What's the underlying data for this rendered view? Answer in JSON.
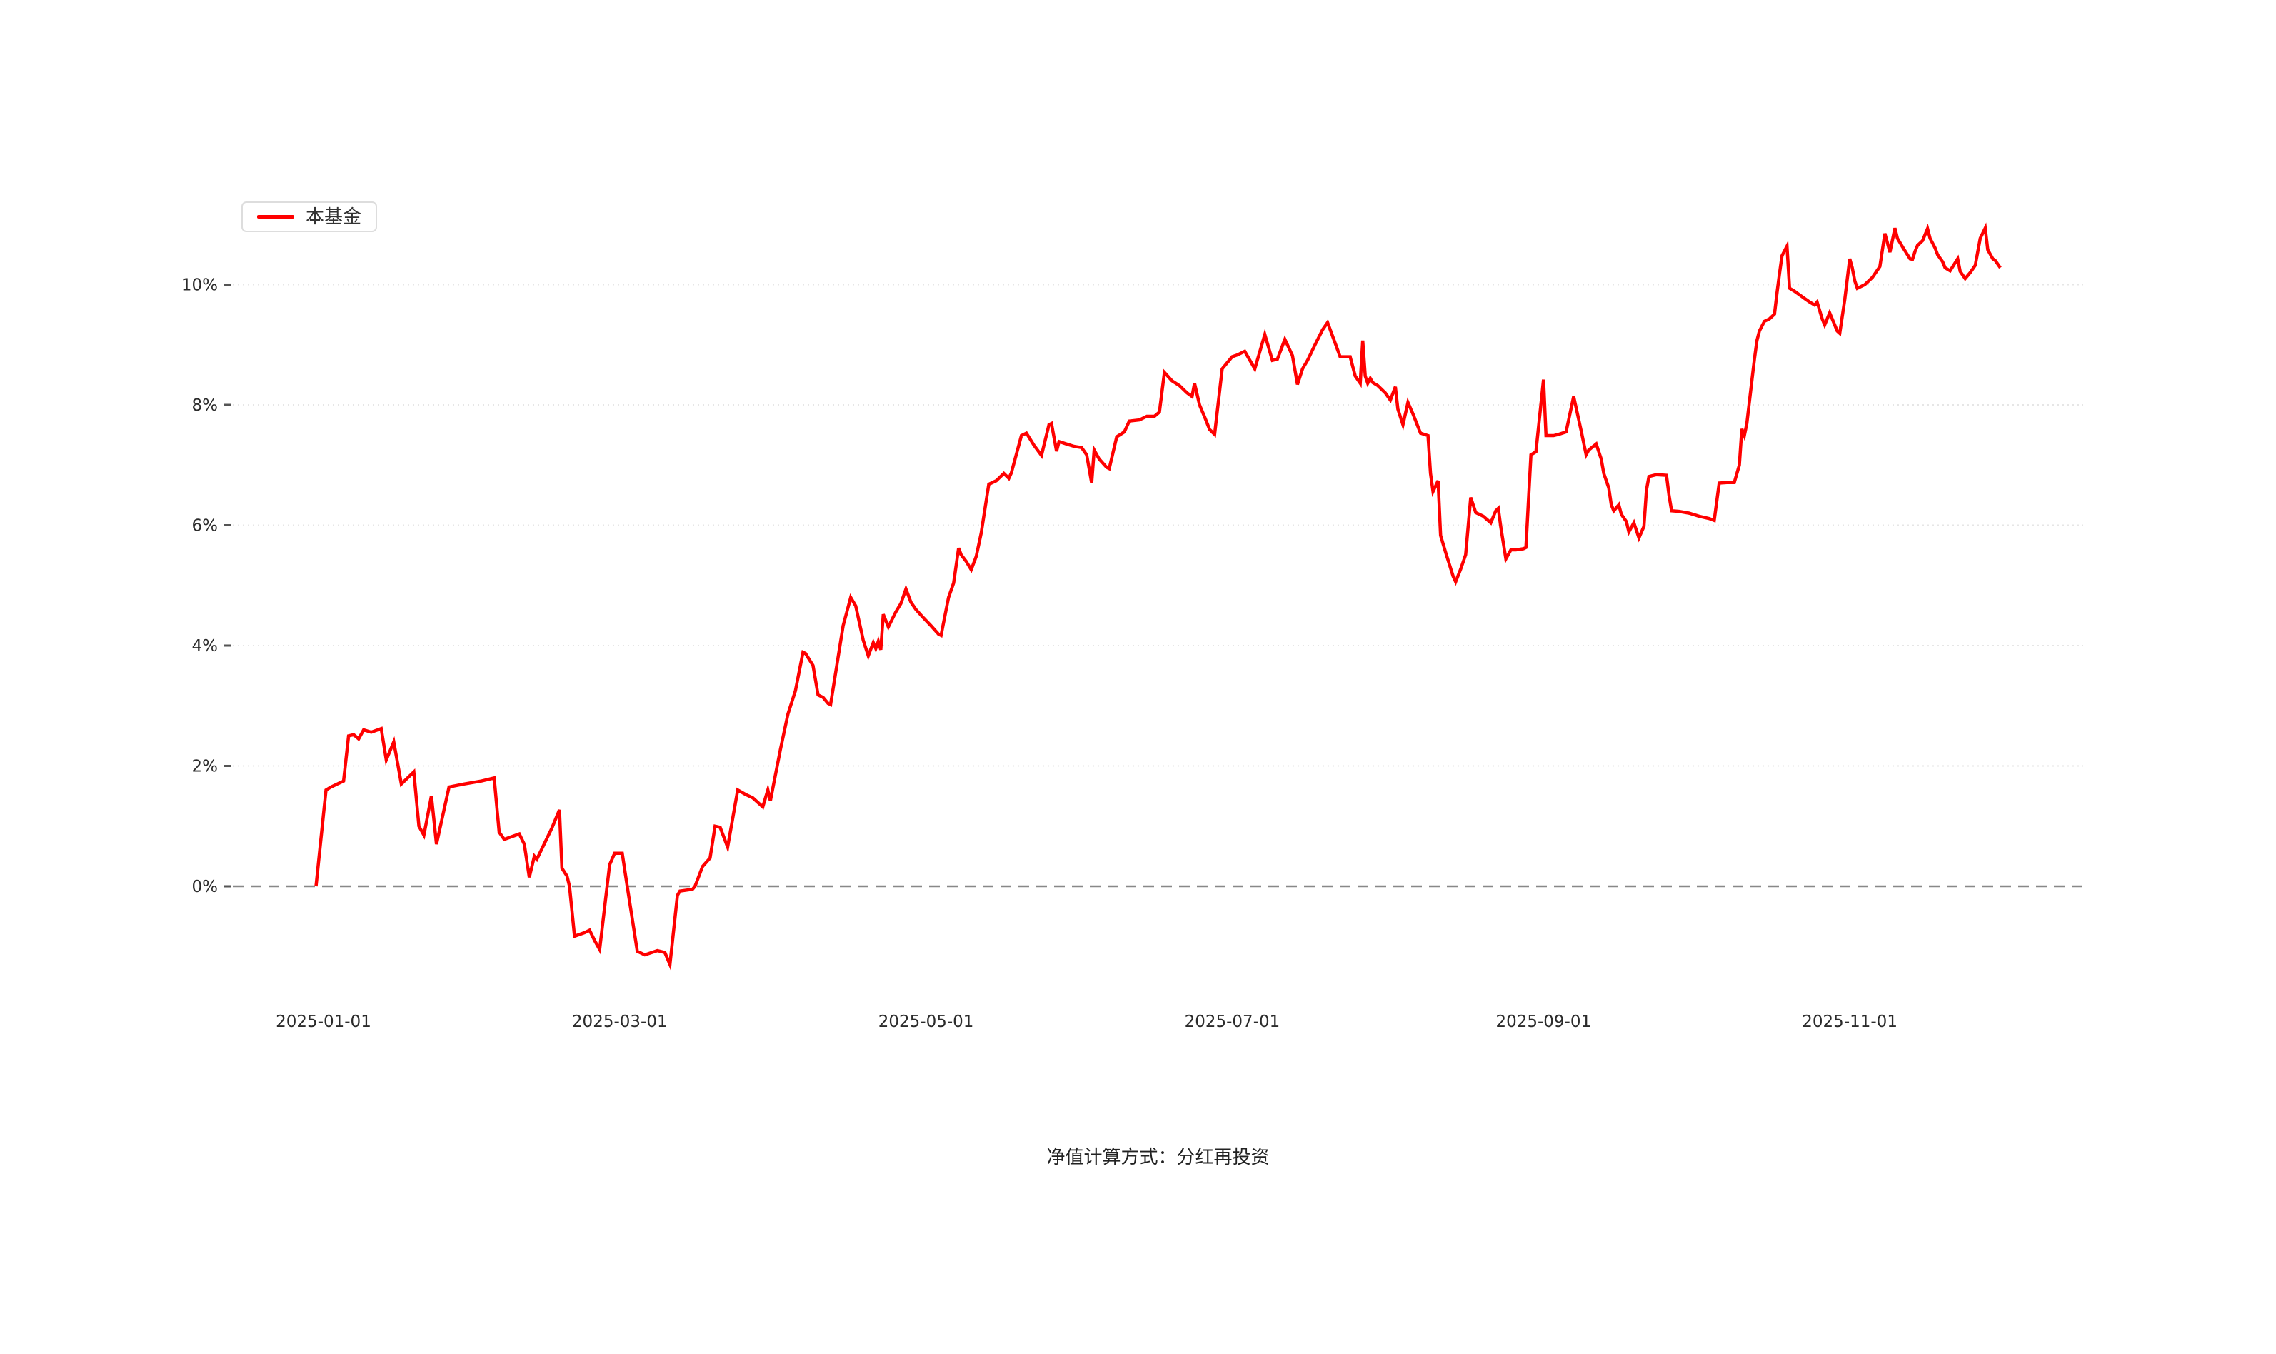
{
  "chart_data": {
    "type": "line",
    "legend": {
      "label": "本基金",
      "position": "top-left"
    },
    "footnote": "净值计算方式：分红再投资",
    "style": {
      "series_color": "#ff0000",
      "zero_line_color": "#888888",
      "grid_line_color": "#e6e6e6",
      "axis_text_color": "#2b2b2b",
      "tick_mark_color": "#555555",
      "background": "#ffffff"
    },
    "x_axis": {
      "unit": "days_from_2025-01-01",
      "range": [
        -18,
        350
      ],
      "ticks": [
        {
          "day": 0,
          "label": "2025-01-01"
        },
        {
          "day": 59,
          "label": "2025-03-01"
        },
        {
          "day": 120,
          "label": "2025-05-01"
        },
        {
          "day": 181,
          "label": "2025-07-01"
        },
        {
          "day": 243,
          "label": "2025-09-01"
        },
        {
          "day": 304,
          "label": "2025-11-01"
        }
      ]
    },
    "y_axis": {
      "unit": "%",
      "grid": "horizontal-dotted",
      "zero_line": "dashed",
      "ticks": [
        {
          "value": 0,
          "label": "0%"
        },
        {
          "value": 2,
          "label": "2%"
        },
        {
          "value": 4,
          "label": "4%"
        },
        {
          "value": 6,
          "label": "6%"
        },
        {
          "value": 8,
          "label": "8%"
        },
        {
          "value": 10,
          "label": "10%"
        }
      ]
    },
    "series": [
      {
        "name": "本基金",
        "color": "#ff0000",
        "points": [
          [
            -1.5,
            0.0
          ],
          [
            0.5,
            1.6
          ],
          [
            1.5,
            1.65
          ],
          [
            4,
            1.75
          ],
          [
            5,
            2.5
          ],
          [
            6,
            2.52
          ],
          [
            7,
            2.45
          ],
          [
            8,
            2.6
          ],
          [
            9.5,
            2.56
          ],
          [
            11.5,
            2.62
          ],
          [
            12.5,
            2.1
          ],
          [
            14,
            2.4
          ],
          [
            15.5,
            1.7
          ],
          [
            16.5,
            1.78
          ],
          [
            18,
            1.9
          ],
          [
            19,
            1.0
          ],
          [
            20,
            0.85
          ],
          [
            21.5,
            1.5
          ],
          [
            22.5,
            0.7
          ],
          [
            25,
            1.65
          ],
          [
            28,
            1.7
          ],
          [
            31.5,
            1.75
          ],
          [
            34,
            1.8
          ],
          [
            35,
            0.9
          ],
          [
            36,
            0.78
          ],
          [
            39,
            0.87
          ],
          [
            40,
            0.7
          ],
          [
            41,
            0.15
          ],
          [
            42,
            0.5
          ],
          [
            42.5,
            0.45
          ],
          [
            45.5,
            0.97
          ],
          [
            47,
            1.27
          ],
          [
            47.5,
            0.3
          ],
          [
            48.5,
            0.17
          ],
          [
            49,
            0.0
          ],
          [
            50,
            -0.83
          ],
          [
            52,
            -0.77
          ],
          [
            53,
            -0.73
          ],
          [
            54,
            -0.9
          ],
          [
            55,
            -1.05
          ],
          [
            57,
            0.36
          ],
          [
            58,
            0.55
          ],
          [
            59.5,
            0.55
          ],
          [
            60.5,
            0.0
          ],
          [
            62.5,
            -1.08
          ],
          [
            64,
            -1.14
          ],
          [
            66.5,
            -1.07
          ],
          [
            68,
            -1.1
          ],
          [
            69,
            -1.3
          ],
          [
            70.5,
            -0.15
          ],
          [
            71,
            -0.08
          ],
          [
            73.5,
            -0.05
          ],
          [
            74,
            0.0
          ],
          [
            75.5,
            0.33
          ],
          [
            77,
            0.47
          ],
          [
            78,
            1.0
          ],
          [
            79,
            0.98
          ],
          [
            80.5,
            0.65
          ],
          [
            82.5,
            1.6
          ],
          [
            84,
            1.53
          ],
          [
            85.5,
            1.47
          ],
          [
            87.5,
            1.32
          ],
          [
            88.5,
            1.6
          ],
          [
            89,
            1.42
          ],
          [
            91,
            2.27
          ],
          [
            92.5,
            2.86
          ],
          [
            94,
            3.25
          ],
          [
            95.5,
            3.89
          ],
          [
            96,
            3.87
          ],
          [
            97.5,
            3.67
          ],
          [
            98.5,
            3.18
          ],
          [
            99.5,
            3.14
          ],
          [
            100.5,
            3.04
          ],
          [
            101,
            3.02
          ],
          [
            103.5,
            4.33
          ],
          [
            105,
            4.8
          ],
          [
            106,
            4.66
          ],
          [
            107.5,
            4.09
          ],
          [
            108.5,
            3.83
          ],
          [
            109.5,
            4.05
          ],
          [
            110,
            3.95
          ],
          [
            110.5,
            4.07
          ],
          [
            111,
            3.93
          ],
          [
            111.5,
            4.52
          ],
          [
            112.5,
            4.31
          ],
          [
            114,
            4.56
          ],
          [
            115,
            4.7
          ],
          [
            116,
            4.94
          ],
          [
            117,
            4.72
          ],
          [
            118,
            4.6
          ],
          [
            119.5,
            4.46
          ],
          [
            121,
            4.33
          ],
          [
            122.5,
            4.19
          ],
          [
            123,
            4.17
          ],
          [
            124.5,
            4.8
          ],
          [
            125.5,
            5.04
          ],
          [
            126.5,
            5.62
          ],
          [
            127,
            5.51
          ],
          [
            128,
            5.4
          ],
          [
            129,
            5.26
          ],
          [
            130,
            5.48
          ],
          [
            131,
            5.87
          ],
          [
            132.5,
            6.68
          ],
          [
            134,
            6.74
          ],
          [
            135.5,
            6.86
          ],
          [
            136.5,
            6.78
          ],
          [
            137,
            6.87
          ],
          [
            139,
            7.49
          ],
          [
            140,
            7.53
          ],
          [
            141.5,
            7.33
          ],
          [
            143,
            7.16
          ],
          [
            144.5,
            7.67
          ],
          [
            145,
            7.69
          ],
          [
            146,
            7.23
          ],
          [
            146.5,
            7.39
          ],
          [
            148,
            7.35
          ],
          [
            149.5,
            7.31
          ],
          [
            151,
            7.29
          ],
          [
            152,
            7.17
          ],
          [
            153,
            6.7
          ],
          [
            153.5,
            7.25
          ],
          [
            154.5,
            7.1
          ],
          [
            156,
            6.96
          ],
          [
            156.5,
            6.94
          ],
          [
            158,
            7.47
          ],
          [
            159.5,
            7.55
          ],
          [
            160.5,
            7.73
          ],
          [
            162.5,
            7.75
          ],
          [
            164,
            7.81
          ],
          [
            165.5,
            7.81
          ],
          [
            166.5,
            7.88
          ],
          [
            167.5,
            8.54
          ],
          [
            169,
            8.4
          ],
          [
            170.5,
            8.32
          ],
          [
            172,
            8.2
          ],
          [
            173,
            8.14
          ],
          [
            173.5,
            8.36
          ],
          [
            174.5,
            8.0
          ],
          [
            175.5,
            7.8
          ],
          [
            176.5,
            7.59
          ],
          [
            177.5,
            7.51
          ],
          [
            179,
            8.6
          ],
          [
            181,
            8.8
          ],
          [
            182,
            8.83
          ],
          [
            183.5,
            8.89
          ],
          [
            185.5,
            8.6
          ],
          [
            187.5,
            9.17
          ],
          [
            189,
            8.74
          ],
          [
            190,
            8.76
          ],
          [
            191.5,
            9.09
          ],
          [
            193,
            8.82
          ],
          [
            194,
            8.34
          ],
          [
            195,
            8.6
          ],
          [
            196,
            8.74
          ],
          [
            197.5,
            9.0
          ],
          [
            199,
            9.25
          ],
          [
            200,
            9.37
          ],
          [
            201.5,
            9.03
          ],
          [
            202.5,
            8.8
          ],
          [
            204.5,
            8.8
          ],
          [
            205.5,
            8.48
          ],
          [
            206.5,
            8.36
          ],
          [
            207,
            9.07
          ],
          [
            207.5,
            8.48
          ],
          [
            208,
            8.36
          ],
          [
            208.5,
            8.44
          ],
          [
            209,
            8.37
          ],
          [
            210,
            8.32
          ],
          [
            211.5,
            8.2
          ],
          [
            212.5,
            8.08
          ],
          [
            213.5,
            8.3
          ],
          [
            214,
            7.93
          ],
          [
            215,
            7.67
          ],
          [
            216,
            8.04
          ],
          [
            217,
            7.85
          ],
          [
            218.5,
            7.53
          ],
          [
            220,
            7.49
          ],
          [
            220.5,
            6.86
          ],
          [
            221,
            6.56
          ],
          [
            222,
            6.74
          ],
          [
            222.5,
            5.83
          ],
          [
            223.5,
            5.55
          ],
          [
            225,
            5.15
          ],
          [
            225.5,
            5.06
          ],
          [
            226.5,
            5.27
          ],
          [
            227.5,
            5.51
          ],
          [
            228.5,
            6.46
          ],
          [
            229.5,
            6.21
          ],
          [
            231,
            6.15
          ],
          [
            232.5,
            6.04
          ],
          [
            233.5,
            6.24
          ],
          [
            234,
            6.28
          ],
          [
            234.5,
            5.97
          ],
          [
            235.5,
            5.44
          ],
          [
            236.5,
            5.59
          ],
          [
            237.5,
            5.59
          ],
          [
            239,
            5.61
          ],
          [
            239.5,
            5.63
          ],
          [
            240.5,
            7.17
          ],
          [
            241.5,
            7.22
          ],
          [
            243,
            8.42
          ],
          [
            243.5,
            7.49
          ],
          [
            245,
            7.49
          ],
          [
            246,
            7.51
          ],
          [
            247.5,
            7.55
          ],
          [
            249,
            8.14
          ],
          [
            250.5,
            7.57
          ],
          [
            251.5,
            7.17
          ],
          [
            252,
            7.25
          ],
          [
            253.5,
            7.35
          ],
          [
            254.5,
            7.1
          ],
          [
            255,
            6.86
          ],
          [
            256,
            6.62
          ],
          [
            256.5,
            6.34
          ],
          [
            257,
            6.24
          ],
          [
            258,
            6.34
          ],
          [
            258.5,
            6.18
          ],
          [
            259.5,
            6.06
          ],
          [
            260,
            5.89
          ],
          [
            261,
            6.04
          ],
          [
            262,
            5.79
          ],
          [
            263,
            5.98
          ],
          [
            263.5,
            6.58
          ],
          [
            264,
            6.81
          ],
          [
            265.5,
            6.84
          ],
          [
            267.5,
            6.83
          ],
          [
            268,
            6.5
          ],
          [
            268.5,
            6.24
          ],
          [
            270,
            6.23
          ],
          [
            272,
            6.2
          ],
          [
            274,
            6.15
          ],
          [
            276,
            6.11
          ],
          [
            277,
            6.08
          ],
          [
            278,
            6.7
          ],
          [
            279.5,
            6.71
          ],
          [
            281,
            6.71
          ],
          [
            282,
            7.0
          ],
          [
            282.5,
            7.6
          ],
          [
            283,
            7.49
          ],
          [
            283.5,
            7.69
          ],
          [
            284.5,
            8.4
          ],
          [
            285,
            8.76
          ],
          [
            285.5,
            9.07
          ],
          [
            286,
            9.23
          ],
          [
            287,
            9.39
          ],
          [
            288,
            9.43
          ],
          [
            289,
            9.51
          ],
          [
            289.5,
            9.86
          ],
          [
            290,
            10.18
          ],
          [
            290.5,
            10.48
          ],
          [
            291.5,
            10.64
          ],
          [
            292,
            9.94
          ],
          [
            293,
            9.89
          ],
          [
            293.5,
            9.86
          ],
          [
            294.5,
            9.8
          ],
          [
            295,
            9.77
          ],
          [
            296,
            9.71
          ],
          [
            297,
            9.66
          ],
          [
            297.5,
            9.71
          ],
          [
            298.5,
            9.43
          ],
          [
            299,
            9.33
          ],
          [
            300,
            9.53
          ],
          [
            301,
            9.33
          ],
          [
            301.5,
            9.23
          ],
          [
            302,
            9.19
          ],
          [
            302.5,
            9.47
          ],
          [
            303,
            9.75
          ],
          [
            304,
            10.43
          ],
          [
            304.5,
            10.28
          ],
          [
            305,
            10.06
          ],
          [
            305.5,
            9.94
          ],
          [
            307,
            10.0
          ],
          [
            308.5,
            10.12
          ],
          [
            310,
            10.3
          ],
          [
            311,
            10.85
          ],
          [
            312,
            10.54
          ],
          [
            313,
            10.94
          ],
          [
            313.5,
            10.77
          ],
          [
            314.5,
            10.63
          ],
          [
            316,
            10.43
          ],
          [
            316.5,
            10.42
          ],
          [
            317,
            10.55
          ],
          [
            317.5,
            10.65
          ],
          [
            318.5,
            10.73
          ],
          [
            319.5,
            10.93
          ],
          [
            320,
            10.77
          ],
          [
            321,
            10.61
          ],
          [
            321.5,
            10.5
          ],
          [
            322.5,
            10.38
          ],
          [
            323,
            10.28
          ],
          [
            324,
            10.23
          ],
          [
            325.5,
            10.43
          ],
          [
            326,
            10.22
          ],
          [
            327,
            10.1
          ],
          [
            328,
            10.2
          ],
          [
            328.5,
            10.26
          ],
          [
            329,
            10.32
          ],
          [
            330,
            10.77
          ],
          [
            331,
            10.94
          ],
          [
            331.5,
            10.58
          ],
          [
            332.5,
            10.43
          ],
          [
            333,
            10.4
          ],
          [
            334,
            10.28
          ]
        ]
      }
    ]
  }
}
